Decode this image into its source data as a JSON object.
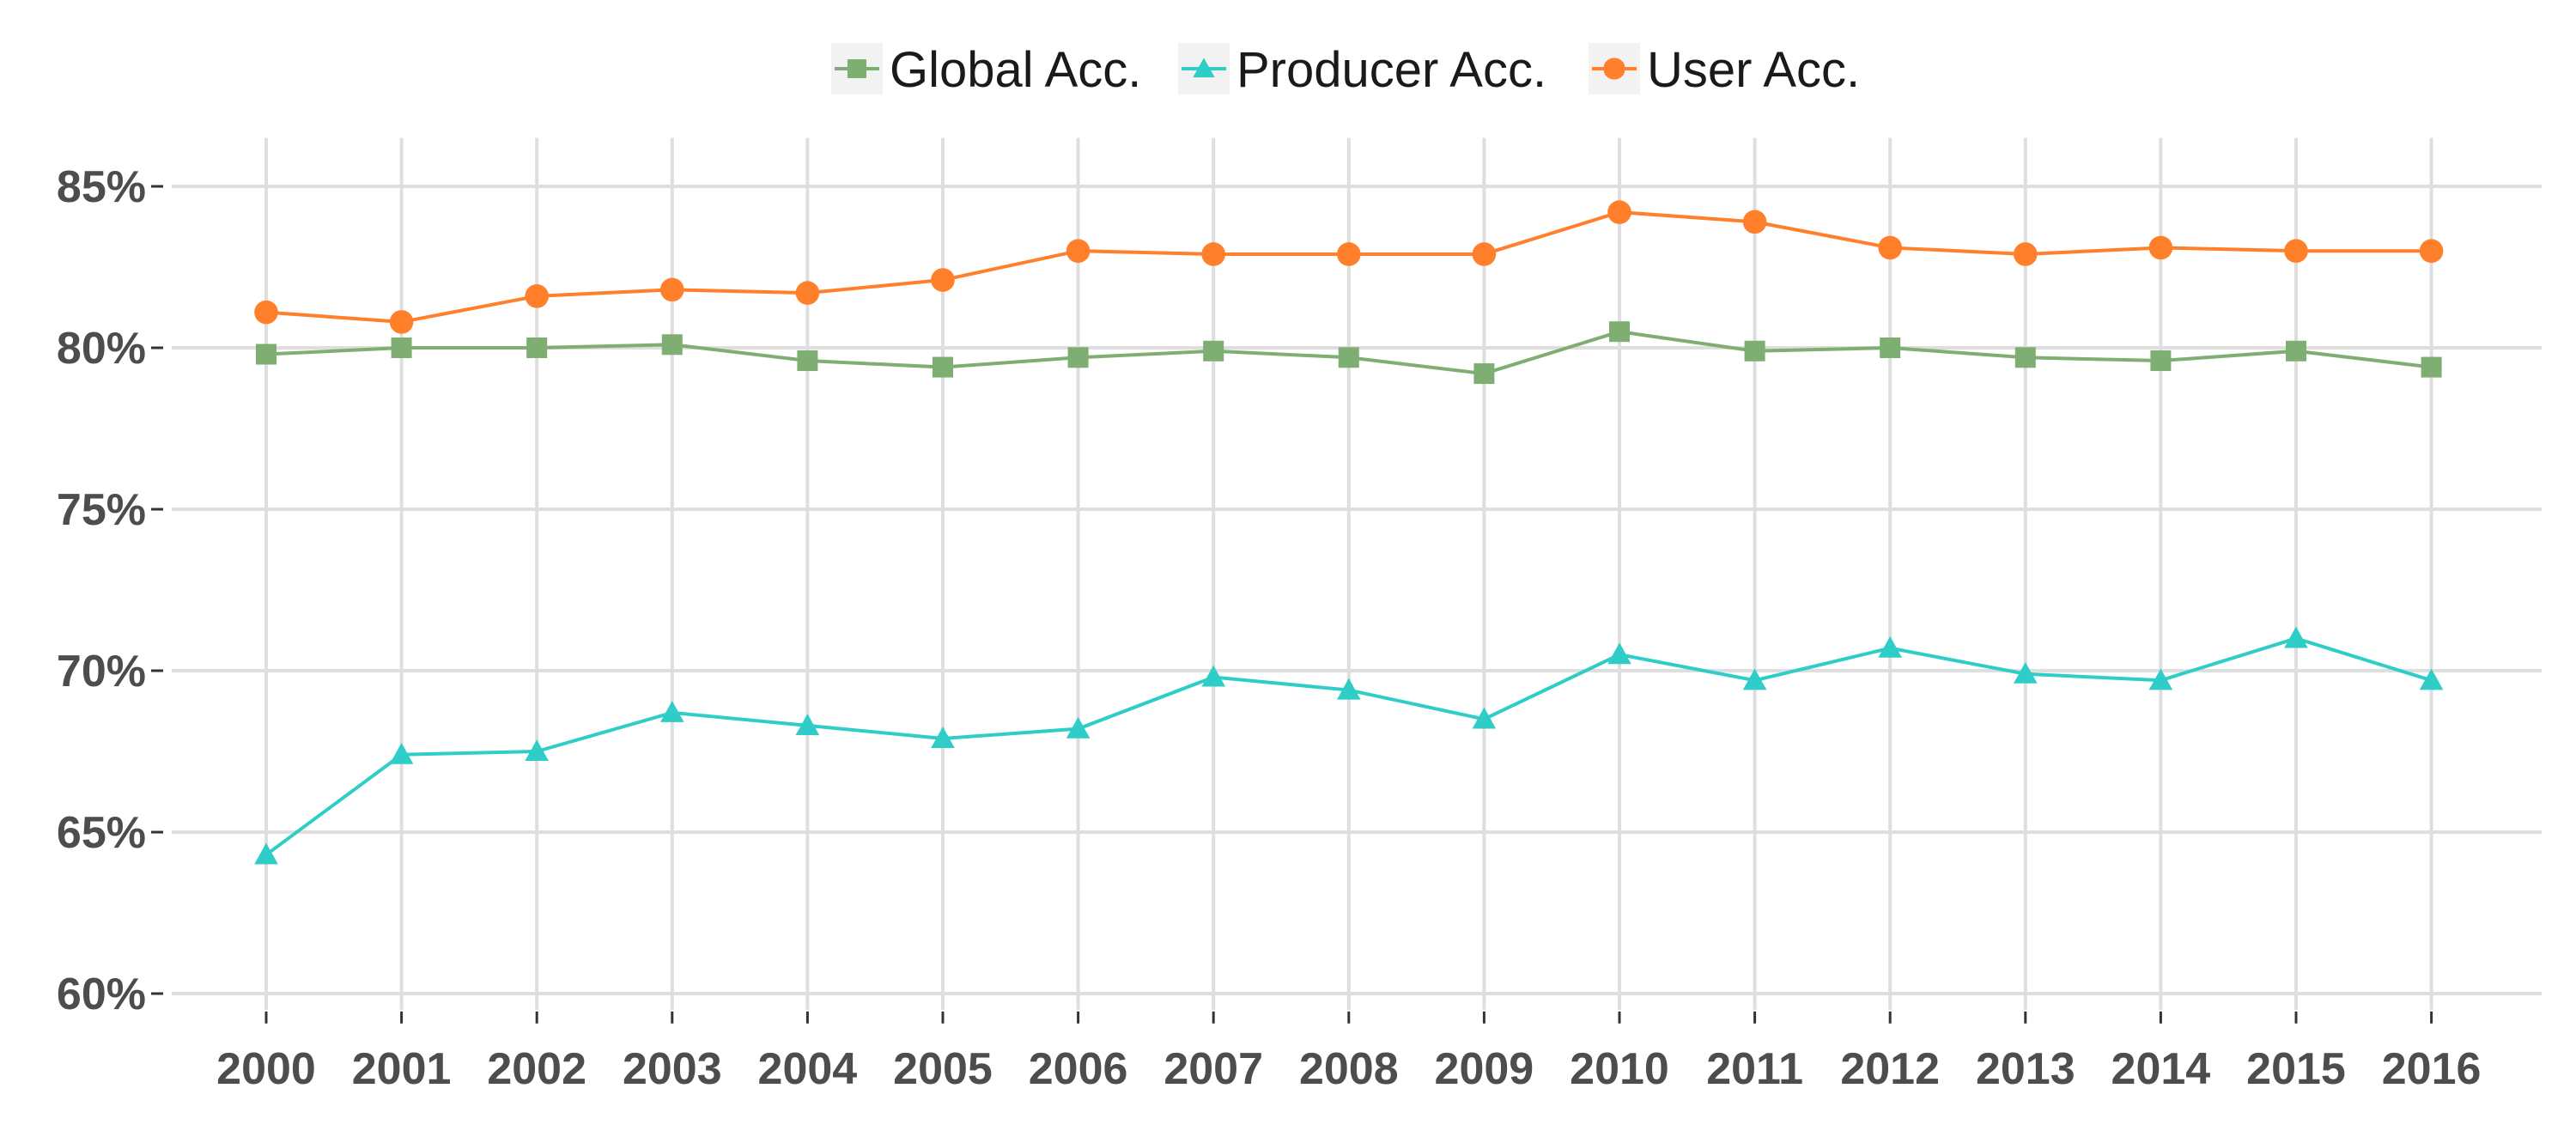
{
  "chart_data": {
    "type": "line",
    "title": "",
    "xlabel": "",
    "ylabel": "",
    "x": [
      "2000",
      "2001",
      "2002",
      "2003",
      "2004",
      "2005",
      "2006",
      "2007",
      "2008",
      "2009",
      "2010",
      "2011",
      "2012",
      "2013",
      "2014",
      "2015",
      "2016"
    ],
    "yticks": [
      60,
      65,
      70,
      75,
      80,
      85
    ],
    "ytick_labels": [
      "60%",
      "65%",
      "70%",
      "75%",
      "80%",
      "85%"
    ],
    "ylim": [
      59.5,
      86.5
    ],
    "grid": true,
    "legend_position": "top-center",
    "series": [
      {
        "name": "Global Acc.",
        "marker": "square",
        "color": "#7fae72",
        "values": [
          79.8,
          80.0,
          80.0,
          80.1,
          79.6,
          79.4,
          79.7,
          79.9,
          79.7,
          79.2,
          80.5,
          79.9,
          80.0,
          79.7,
          79.6,
          79.9,
          79.4
        ]
      },
      {
        "name": "Producer Acc.",
        "marker": "triangle",
        "color": "#2ecdc7",
        "values": [
          64.3,
          67.4,
          67.5,
          68.7,
          68.3,
          67.9,
          68.2,
          69.8,
          69.4,
          68.5,
          70.5,
          69.7,
          70.7,
          69.9,
          69.7,
          71.0,
          69.7
        ]
      },
      {
        "name": "User Acc.",
        "marker": "circle",
        "color": "#ff7f2a",
        "values": [
          81.1,
          80.8,
          81.6,
          81.8,
          81.7,
          82.1,
          83.0,
          82.9,
          82.9,
          82.9,
          84.2,
          83.9,
          83.1,
          82.9,
          83.1,
          83.0,
          83.0
        ]
      }
    ]
  }
}
